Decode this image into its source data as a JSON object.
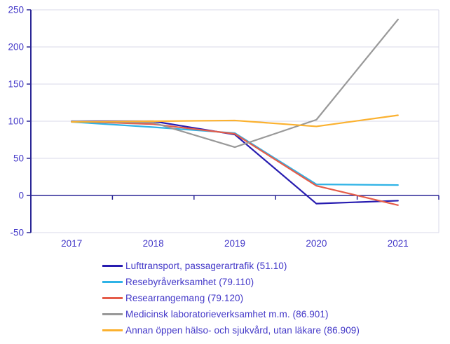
{
  "chart_data": {
    "type": "line",
    "title": "",
    "xlabel": "",
    "ylabel": "",
    "categories": [
      "2017",
      "2018",
      "2019",
      "2020",
      "2021"
    ],
    "series": [
      {
        "name": "Lufttransport, passagerartrafik (51.10)",
        "color": "#271cb0",
        "values": [
          100,
          100,
          82,
          -11,
          -7
        ]
      },
      {
        "name": "Resebyråverksamhet (79.110)",
        "color": "#2fb3e6",
        "values": [
          99,
          92,
          84,
          15,
          14
        ]
      },
      {
        "name": "Researrangemang (79.120)",
        "color": "#e55c49",
        "values": [
          100,
          96,
          83,
          13,
          -13
        ]
      },
      {
        "name": "Medicinsk laboratorieverksamhet m.m. (86.901)",
        "color": "#999999",
        "values": [
          100,
          98,
          65,
          102,
          237
        ]
      },
      {
        "name": "Annan öppen hälso- och sjukvård, utan läkare (86.909)",
        "color": "#fbb12f",
        "values": [
          99,
          100,
          101,
          93,
          108
        ]
      }
    ],
    "ylim": [
      -50,
      250
    ],
    "y_ticks": [
      250,
      200,
      150,
      100,
      50,
      0,
      -50
    ],
    "grid": true,
    "legend_position": "bottom-left",
    "colors": {
      "axis": "#2b2796",
      "grid": "#d8d8ea",
      "tick_label": "#4237c8",
      "background": "#ffffff"
    }
  }
}
